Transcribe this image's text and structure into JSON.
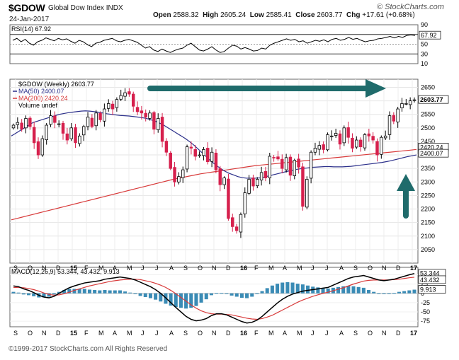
{
  "header": {
    "symbol": "$GDOW",
    "name": "Global Dow Index",
    "exchange": "INDX",
    "date": "24-Jan-2017",
    "open_label": "Open",
    "open": "2588.32",
    "high_label": "High",
    "high": "2605.24",
    "low_label": "Low",
    "low": "2585.41",
    "close_label": "Close",
    "close": "2603.77",
    "chg_label": "Chg",
    "chg": "+17.61 (+0.68%)",
    "brand": "© StockCharts.com"
  },
  "footer": {
    "copyright": "©1999-2017 StockCharts.com All Rights Reserved"
  },
  "colors": {
    "up_candle": "#ffffff",
    "down_candle": "#d6204d",
    "price_outline": "#000000",
    "ma50": "#2b2f8a",
    "ma200": "#d83a3a",
    "arrow": "#1f6b6b",
    "macd_line": "#000000",
    "macd_signal": "#d83a3a",
    "histogram": "#3a8bb5"
  },
  "chart_data": [
    {
      "type": "line",
      "panel": "rsi",
      "legend": "RSI(14) 67.92",
      "ylim": [
        10,
        90
      ],
      "ticks": [
        90,
        70,
        50,
        30,
        10
      ],
      "reference_lines": [
        70,
        50,
        30
      ],
      "last_value_label": "67.92",
      "series": [
        {
          "name": "RSI(14)",
          "values": [
            58,
            62,
            55,
            60,
            52,
            48,
            55,
            58,
            63,
            60,
            57,
            62,
            59,
            61,
            56,
            52,
            58,
            55,
            49,
            45,
            52,
            54,
            58,
            60,
            62,
            57,
            55,
            58,
            60,
            57,
            54,
            48,
            42,
            45,
            38,
            35,
            40,
            36,
            33,
            37,
            40,
            42,
            48,
            52,
            45,
            38,
            36,
            40,
            45,
            38,
            33,
            35,
            42,
            48,
            46,
            40,
            43,
            40,
            36,
            37,
            42,
            40,
            48,
            52,
            55,
            58,
            61,
            58,
            60,
            55,
            57,
            52,
            55,
            58,
            56,
            59,
            55,
            60,
            62,
            58,
            60,
            64,
            60,
            62,
            58,
            55,
            57,
            58,
            61,
            62,
            64,
            66,
            63,
            66,
            64,
            68,
            69,
            67.92
          ]
        }
      ]
    },
    {
      "type": "candlestick",
      "panel": "price",
      "title": "$GDOW (Weekly) 2603.77",
      "ylim": [
        2000,
        2680
      ],
      "y_ticks": [
        2650,
        2600,
        2550,
        2500,
        2450,
        2400,
        2350,
        2300,
        2250,
        2200,
        2150,
        2100,
        2050
      ],
      "x_tick_labels": [
        "S",
        "O",
        "N",
        "D",
        "15",
        "F",
        "M",
        "A",
        "M",
        "J",
        "J",
        "A",
        "S",
        "O",
        "N",
        "D",
        "16",
        "F",
        "M",
        "A",
        "M",
        "J",
        "J",
        "A",
        "S",
        "O",
        "N",
        "D",
        "17"
      ],
      "last_labels": {
        "close": "2603.77",
        "ma200": "2420.24",
        "ma50": "2400.07"
      },
      "legend": [
        {
          "label": "$GDOW (Weekly) 2603.77",
          "color": "#000000"
        },
        {
          "label": "MA(50) 2400.07",
          "color": "#2b2f8a"
        },
        {
          "label": "MA(200) 2420.24",
          "color": "#d83a3a"
        },
        {
          "label": "Volume undef",
          "color": "#000000"
        }
      ],
      "closes": [
        2510,
        2520,
        2495,
        2535,
        2505,
        2445,
        2400,
        2460,
        2510,
        2545,
        2520,
        2515,
        2480,
        2455,
        2500,
        2445,
        2470,
        2505,
        2540,
        2505,
        2555,
        2530,
        2570,
        2590,
        2570,
        2605,
        2620,
        2630,
        2625,
        2580,
        2560,
        2555,
        2540,
        2555,
        2495,
        2535,
        2450,
        2410,
        2350,
        2300,
        2320,
        2345,
        2430,
        2425,
        2395,
        2400,
        2420,
        2375,
        2410,
        2345,
        2290,
        2315,
        2165,
        2135,
        2120,
        2180,
        2260,
        2310,
        2285,
        2310,
        2335,
        2315,
        2395,
        2390,
        2385,
        2350,
        2390,
        2325,
        2380,
        2355,
        2210,
        2310,
        2410,
        2425,
        2435,
        2420,
        2475,
        2470,
        2480,
        2440,
        2500,
        2465,
        2425,
        2455,
        2430,
        2475,
        2470,
        2455,
        2400,
        2465,
        2470,
        2545,
        2525,
        2570,
        2590,
        2590,
        2600,
        2603.77
      ],
      "ma50": [
        2470,
        2480,
        2490,
        2500,
        2510,
        2520,
        2525,
        2530,
        2535,
        2540,
        2545,
        2550,
        2553,
        2556,
        2558,
        2560,
        2562,
        2563,
        2562,
        2560,
        2558,
        2555,
        2552,
        2550,
        2548,
        2546,
        2545,
        2544,
        2542,
        2540,
        2538,
        2535,
        2530,
        2525,
        2518,
        2510,
        2500,
        2490,
        2480,
        2470,
        2460,
        2448,
        2435,
        2420,
        2405,
        2390,
        2375,
        2362,
        2350,
        2340,
        2332,
        2326,
        2320,
        2316,
        2314,
        2314,
        2314,
        2315,
        2318,
        2322,
        2326,
        2330,
        2334,
        2338,
        2342,
        2345,
        2348,
        2350,
        2352,
        2354,
        2355,
        2356,
        2357,
        2357,
        2356,
        2356,
        2356,
        2357,
        2358,
        2360,
        2362,
        2364,
        2366,
        2368,
        2370,
        2372,
        2375,
        2378,
        2382,
        2386,
        2390,
        2394,
        2397,
        2400.07
      ],
      "ma200": [
        2160,
        2165,
        2170,
        2175,
        2180,
        2185,
        2190,
        2195,
        2200,
        2205,
        2210,
        2215,
        2220,
        2225,
        2230,
        2235,
        2240,
        2245,
        2250,
        2255,
        2260,
        2265,
        2270,
        2275,
        2280,
        2285,
        2290,
        2295,
        2300,
        2305,
        2310,
        2314,
        2318,
        2322,
        2326,
        2330,
        2333,
        2336,
        2339,
        2342,
        2345,
        2348,
        2351,
        2354,
        2357,
        2360,
        2362,
        2364,
        2366,
        2368,
        2370,
        2372,
        2374,
        2376,
        2378,
        2380,
        2382,
        2384,
        2386,
        2388,
        2390,
        2392,
        2394,
        2396,
        2398,
        2400,
        2402,
        2404,
        2406,
        2408,
        2410,
        2412,
        2414,
        2416,
        2418,
        2420.24
      ],
      "annotations": [
        "horizontal resistance arrow pointing right",
        "vertical arrow pointing up"
      ]
    },
    {
      "type": "line",
      "panel": "macd",
      "legend": "MACD(12,26,9) 53.344, 43.432, 9.913",
      "ylim": [
        -90,
        70
      ],
      "y_ticks": [
        50,
        25,
        0,
        -25,
        -50,
        -75
      ],
      "last_labels": {
        "macd": "53.344",
        "signal": "43.432",
        "histogram": "9.913"
      },
      "x_tick_labels": [
        "S",
        "O",
        "N",
        "D",
        "15",
        "F",
        "M",
        "A",
        "M",
        "J",
        "J",
        "A",
        "S",
        "O",
        "N",
        "D",
        "16",
        "F",
        "M",
        "A",
        "M",
        "J",
        "J",
        "A",
        "S",
        "O",
        "N",
        "D",
        "17"
      ],
      "series": [
        {
          "name": "MACD",
          "values": [
            20,
            18,
            12,
            8,
            2,
            -5,
            -10,
            -12,
            -8,
            0,
            8,
            15,
            20,
            24,
            28,
            30,
            32,
            34,
            38,
            40,
            42,
            44,
            42,
            40,
            36,
            30,
            24,
            18,
            10,
            0,
            -12,
            -25,
            -38,
            -50,
            -62,
            -70,
            -74,
            -72,
            -68,
            -60,
            -55,
            -55,
            -58,
            -64,
            -70,
            -76,
            -80,
            -78,
            -72,
            -62,
            -50,
            -38,
            -26,
            -16,
            -8,
            -2,
            2,
            6,
            8,
            10,
            12,
            14,
            16,
            22,
            28,
            34,
            40,
            44,
            46,
            48,
            44,
            40,
            36,
            34,
            36,
            38,
            42,
            46,
            50,
            53.344
          ]
        },
        {
          "name": "Signal",
          "values": [
            16,
            16,
            15,
            13,
            10,
            6,
            1,
            -3,
            -5,
            -4,
            -1,
            3,
            8,
            12,
            16,
            20,
            23,
            26,
            29,
            32,
            34,
            36,
            37,
            38,
            38,
            37,
            34,
            31,
            27,
            22,
            16,
            8,
            -1,
            -11,
            -21,
            -31,
            -40,
            -47,
            -52,
            -55,
            -56,
            -56,
            -57,
            -58,
            -61,
            -64,
            -67,
            -69,
            -70,
            -68,
            -64,
            -59,
            -52,
            -45,
            -38,
            -31,
            -24,
            -18,
            -13,
            -8,
            -4,
            0,
            3,
            7,
            11,
            15,
            20,
            25,
            29,
            33,
            35,
            36,
            36,
            36,
            36,
            37,
            38,
            40,
            42,
            43.432
          ]
        },
        {
          "name": "Histogram",
          "values": [
            4,
            2,
            -3,
            -5,
            -8,
            -11,
            -11,
            -9,
            -3,
            4,
            9,
            12,
            12,
            12,
            12,
            10,
            9,
            8,
            9,
            8,
            8,
            8,
            5,
            2,
            -2,
            -7,
            -10,
            -13,
            -17,
            -22,
            -28,
            -33,
            -37,
            -39,
            -41,
            -39,
            -34,
            -25,
            -16,
            -5,
            1,
            1,
            -1,
            -6,
            -9,
            -12,
            -13,
            -9,
            -2,
            6,
            14,
            21,
            26,
            29,
            30,
            29,
            26,
            24,
            21,
            18,
            16,
            14,
            13,
            15,
            17,
            19,
            20,
            19,
            17,
            15,
            9,
            4,
            0,
            -2,
            0,
            1,
            4,
            6,
            8,
            9.913
          ]
        }
      ]
    }
  ]
}
